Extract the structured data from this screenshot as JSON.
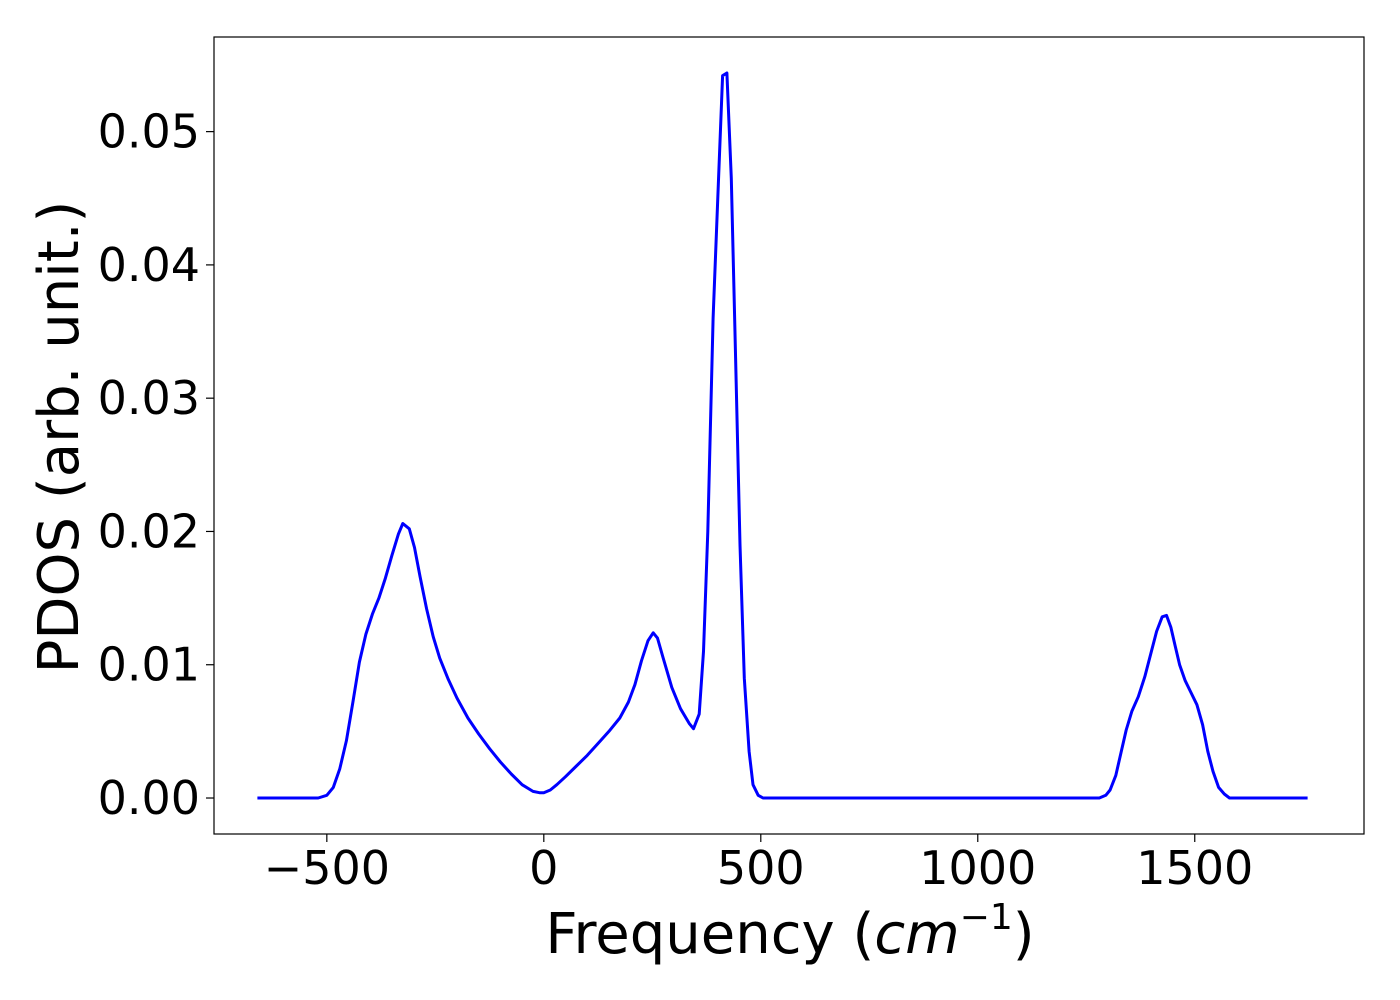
{
  "chart_data": {
    "type": "line",
    "title": "",
    "xlabel": "Frequency (",
    "xlabel_math": "cm",
    "xlabel_sup": "−1",
    "xlabel_close": ")",
    "ylabel": "PDOS (arb. unit.)",
    "xlim": [
      -760,
      1890
    ],
    "ylim": [
      -0.0027,
      0.0571
    ],
    "xticks": [
      -500,
      0,
      500,
      1000,
      1500
    ],
    "xtick_labels": [
      "−500",
      "0",
      "500",
      "1000",
      "1500"
    ],
    "yticks": [
      0,
      0.01,
      0.02,
      0.03,
      0.04,
      0.05
    ],
    "ytick_labels": [
      "0.00",
      "0.01",
      "0.02",
      "0.03",
      "0.04",
      "0.05"
    ],
    "grid": false,
    "legend": "none",
    "series": [
      {
        "color": "#0000ff",
        "x": [
          -660,
          -520,
          -500,
          -485,
          -470,
          -455,
          -440,
          -425,
          -410,
          -395,
          -380,
          -365,
          -350,
          -335,
          -325,
          -310,
          -298,
          -285,
          -270,
          -255,
          -240,
          -220,
          -200,
          -175,
          -150,
          -125,
          -100,
          -75,
          -50,
          -25,
          -10,
          0,
          15,
          30,
          50,
          75,
          100,
          125,
          150,
          175,
          195,
          210,
          225,
          240,
          252,
          262,
          275,
          295,
          315,
          335,
          345,
          358,
          368,
          378,
          390,
          402,
          412,
          422,
          432,
          442,
          452,
          462,
          473,
          482,
          494,
          505,
          530,
          1280,
          1295,
          1305,
          1318,
          1330,
          1342,
          1355,
          1370,
          1385,
          1400,
          1412,
          1425,
          1435,
          1445,
          1455,
          1465,
          1478,
          1490,
          1505,
          1518,
          1530,
          1542,
          1555,
          1568,
          1580,
          1595,
          1620,
          1760
        ],
        "y": [
          0,
          0,
          0.0002,
          0.0008,
          0.0022,
          0.0043,
          0.0072,
          0.0102,
          0.0123,
          0.0138,
          0.015,
          0.0165,
          0.0182,
          0.0198,
          0.0206,
          0.0202,
          0.0188,
          0.0166,
          0.0142,
          0.0121,
          0.0105,
          0.0089,
          0.0075,
          0.006,
          0.0048,
          0.0037,
          0.0027,
          0.0018,
          0.001,
          0.0005,
          0.0004,
          0.0004,
          0.0006,
          0.001,
          0.0016,
          0.0024,
          0.0032,
          0.0041,
          0.005,
          0.006,
          0.0072,
          0.0085,
          0.0103,
          0.0118,
          0.0124,
          0.012,
          0.0105,
          0.0083,
          0.0067,
          0.0056,
          0.0052,
          0.0063,
          0.011,
          0.02,
          0.036,
          0.046,
          0.0542,
          0.0544,
          0.0465,
          0.033,
          0.019,
          0.009,
          0.0035,
          0.001,
          0.0002,
          0,
          0,
          0,
          0.0002,
          0.0006,
          0.0017,
          0.0034,
          0.0051,
          0.0065,
          0.0076,
          0.0091,
          0.011,
          0.0125,
          0.0136,
          0.0137,
          0.0128,
          0.0114,
          0.01,
          0.0088,
          0.008,
          0.007,
          0.0055,
          0.0035,
          0.002,
          0.0008,
          0.0003,
          0,
          0,
          0,
          0
        ]
      }
    ]
  }
}
